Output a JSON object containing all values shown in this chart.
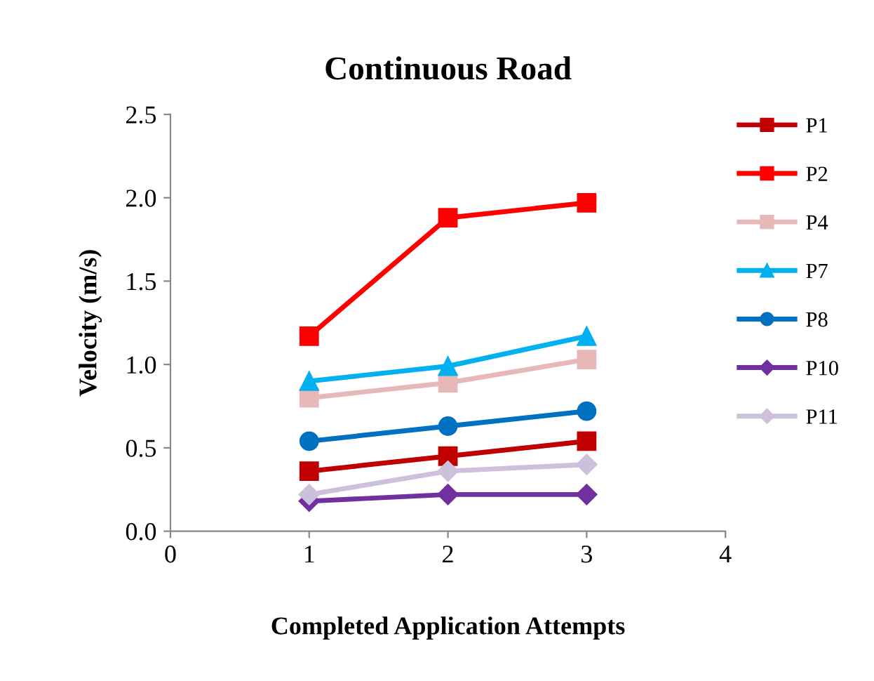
{
  "chart_data": {
    "type": "line",
    "title": "Continuous Road",
    "xlabel": "Completed Application Attempts",
    "ylabel": "Velocity (m/s)",
    "x": [
      1,
      2,
      3
    ],
    "xlim": [
      0,
      4
    ],
    "xticks": [
      0,
      1,
      2,
      3,
      4
    ],
    "ylim": [
      0,
      2.5
    ],
    "yticks": [
      {
        "value": 0,
        "label": "0.0"
      },
      {
        "value": 0.5,
        "label": "0.5"
      },
      {
        "value": 1,
        "label": "1.0"
      },
      {
        "value": 1.5,
        "label": "1.5"
      },
      {
        "value": 2,
        "label": "2.0"
      },
      {
        "value": 2.5,
        "label": "2.5"
      }
    ],
    "grid": false,
    "legend": "right",
    "line_style": "solid",
    "series": [
      {
        "name": "P1",
        "color": "#c00000",
        "marker": "square",
        "values": [
          0.36,
          0.45,
          0.54
        ]
      },
      {
        "name": "P2",
        "color": "#ff0000",
        "marker": "square",
        "values": [
          1.17,
          1.88,
          1.97
        ]
      },
      {
        "name": "P4",
        "color": "#e6b9b8",
        "marker": "square",
        "values": [
          0.8,
          0.89,
          1.03
        ]
      },
      {
        "name": "P7",
        "color": "#00b0f0",
        "marker": "triangle",
        "values": [
          0.9,
          0.99,
          1.17
        ]
      },
      {
        "name": "P8",
        "color": "#0070c0",
        "marker": "circle",
        "values": [
          0.54,
          0.63,
          0.72
        ]
      },
      {
        "name": "P10",
        "color": "#7030a0",
        "marker": "diamond",
        "values": [
          0.18,
          0.22,
          0.22
        ]
      },
      {
        "name": "P11",
        "color": "#ccc0da",
        "marker": "diamond",
        "values": [
          0.22,
          0.36,
          0.4
        ]
      }
    ]
  }
}
